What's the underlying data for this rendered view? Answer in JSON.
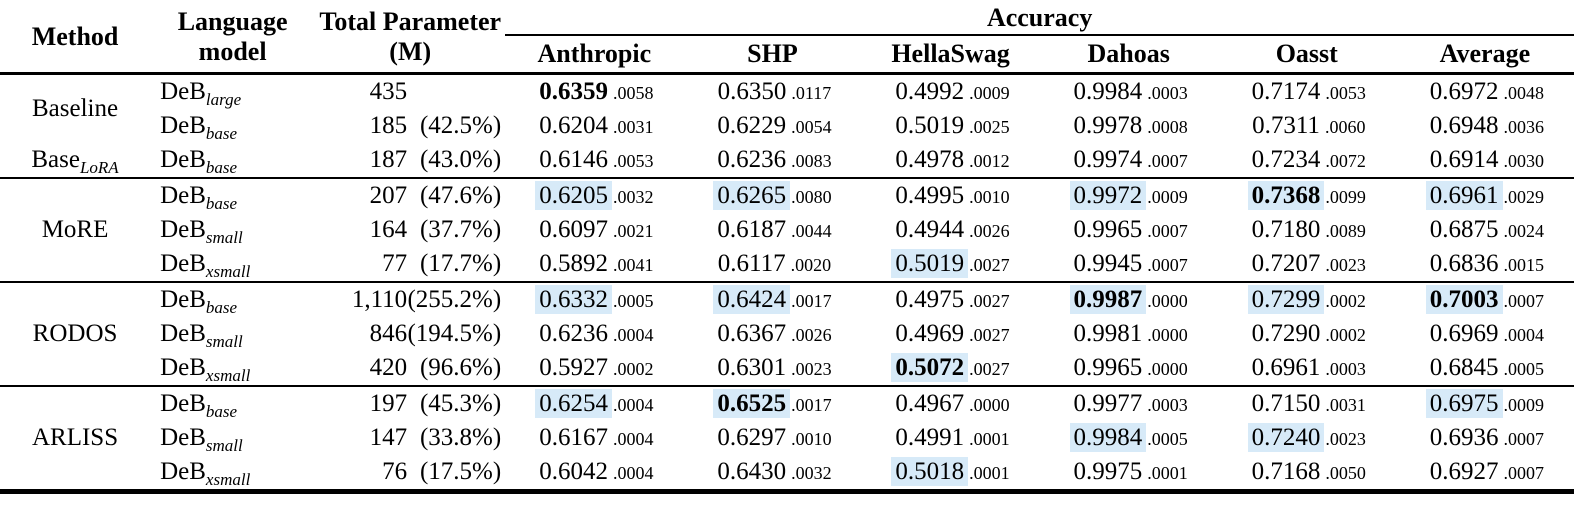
{
  "header": {
    "method": "Method",
    "language_model": "Language model",
    "total_parameter": "Total Parameter (M)",
    "accuracy": "Accuracy",
    "columns": [
      "Anthropic",
      "SHP",
      "HellaSwag",
      "Dahoas",
      "Oasst",
      "Average"
    ]
  },
  "highlight_color": "#d7eaf8",
  "blocks": [
    {
      "methods": [
        {
          "text": "Baseline",
          "sub": ""
        },
        {
          "text": "Base",
          "sub": "LoRA"
        }
      ],
      "rows": [
        {
          "model": {
            "base": "DeB",
            "sub": "large"
          },
          "param_num": "435",
          "param_pct": "",
          "acc": [
            {
              "v": "0.6359",
              "sd": ".0058",
              "cls": "bold"
            },
            {
              "v": "0.6350",
              "sd": ".0117",
              "cls": ""
            },
            {
              "v": "0.4992",
              "sd": ".0009",
              "cls": ""
            },
            {
              "v": "0.9984",
              "sd": ".0003",
              "cls": ""
            },
            {
              "v": "0.7174",
              "sd": ".0053",
              "cls": ""
            },
            {
              "v": "0.6972",
              "sd": ".0048",
              "cls": ""
            }
          ]
        },
        {
          "model": {
            "base": "DeB",
            "sub": "base"
          },
          "param_num": "185",
          "param_pct": "(42.5%)",
          "acc": [
            {
              "v": "0.6204",
              "sd": ".0031",
              "cls": ""
            },
            {
              "v": "0.6229",
              "sd": ".0054",
              "cls": ""
            },
            {
              "v": "0.5019",
              "sd": ".0025",
              "cls": ""
            },
            {
              "v": "0.9978",
              "sd": ".0008",
              "cls": ""
            },
            {
              "v": "0.7311",
              "sd": ".0060",
              "cls": ""
            },
            {
              "v": "0.6948",
              "sd": ".0036",
              "cls": ""
            }
          ]
        },
        {
          "model": {
            "base": "DeB",
            "sub": "base"
          },
          "param_num": "187",
          "param_pct": "(43.0%)",
          "acc": [
            {
              "v": "0.6146",
              "sd": ".0053",
              "cls": ""
            },
            {
              "v": "0.6236",
              "sd": ".0083",
              "cls": ""
            },
            {
              "v": "0.4978",
              "sd": ".0012",
              "cls": ""
            },
            {
              "v": "0.9974",
              "sd": ".0007",
              "cls": ""
            },
            {
              "v": "0.7234",
              "sd": ".0072",
              "cls": ""
            },
            {
              "v": "0.6914",
              "sd": ".0030",
              "cls": ""
            }
          ]
        }
      ]
    },
    {
      "methods": [
        {
          "text": "MoRE",
          "sub": ""
        }
      ],
      "rows": [
        {
          "model": {
            "base": "DeB",
            "sub": "base"
          },
          "param_num": "207",
          "param_pct": "(47.6%)",
          "acc": [
            {
              "v": "0.6205",
              "sd": ".0032",
              "cls": "hl"
            },
            {
              "v": "0.6265",
              "sd": ".0080",
              "cls": "hl"
            },
            {
              "v": "0.4995",
              "sd": ".0010",
              "cls": ""
            },
            {
              "v": "0.9972",
              "sd": ".0009",
              "cls": "hl"
            },
            {
              "v": "0.7368",
              "sd": ".0099",
              "cls": "bold hl"
            },
            {
              "v": "0.6961",
              "sd": ".0029",
              "cls": "hl"
            }
          ]
        },
        {
          "model": {
            "base": "DeB",
            "sub": "small"
          },
          "param_num": "164",
          "param_pct": "(37.7%)",
          "acc": [
            {
              "v": "0.6097",
              "sd": ".0021",
              "cls": ""
            },
            {
              "v": "0.6187",
              "sd": ".0044",
              "cls": ""
            },
            {
              "v": "0.4944",
              "sd": ".0026",
              "cls": ""
            },
            {
              "v": "0.9965",
              "sd": ".0007",
              "cls": ""
            },
            {
              "v": "0.7180",
              "sd": ".0089",
              "cls": ""
            },
            {
              "v": "0.6875",
              "sd": ".0024",
              "cls": ""
            }
          ]
        },
        {
          "model": {
            "base": "DeB",
            "sub": "xsmall"
          },
          "param_num": "77",
          "param_pct": "(17.7%)",
          "acc": [
            {
              "v": "0.5892",
              "sd": ".0041",
              "cls": ""
            },
            {
              "v": "0.6117",
              "sd": ".0020",
              "cls": ""
            },
            {
              "v": "0.5019",
              "sd": ".0027",
              "cls": "hl"
            },
            {
              "v": "0.9945",
              "sd": ".0007",
              "cls": ""
            },
            {
              "v": "0.7207",
              "sd": ".0023",
              "cls": ""
            },
            {
              "v": "0.6836",
              "sd": ".0015",
              "cls": ""
            }
          ]
        }
      ]
    },
    {
      "methods": [
        {
          "text": "RODOS",
          "sub": ""
        }
      ],
      "rows": [
        {
          "model": {
            "base": "DeB",
            "sub": "base"
          },
          "param_num": "1,110",
          "param_pct": "(255.2%)",
          "acc": [
            {
              "v": "0.6332",
              "sd": ".0005",
              "cls": "hl"
            },
            {
              "v": "0.6424",
              "sd": ".0017",
              "cls": "hl"
            },
            {
              "v": "0.4975",
              "sd": ".0027",
              "cls": ""
            },
            {
              "v": "0.9987",
              "sd": ".0000",
              "cls": "bold hl"
            },
            {
              "v": "0.7299",
              "sd": ".0002",
              "cls": "hl"
            },
            {
              "v": "0.7003",
              "sd": ".0007",
              "cls": "bold hl"
            }
          ]
        },
        {
          "model": {
            "base": "DeB",
            "sub": "small"
          },
          "param_num": "846",
          "param_pct": "(194.5%)",
          "acc": [
            {
              "v": "0.6236",
              "sd": ".0004",
              "cls": ""
            },
            {
              "v": "0.6367",
              "sd": ".0026",
              "cls": ""
            },
            {
              "v": "0.4969",
              "sd": ".0027",
              "cls": ""
            },
            {
              "v": "0.9981",
              "sd": ".0000",
              "cls": ""
            },
            {
              "v": "0.7290",
              "sd": ".0002",
              "cls": ""
            },
            {
              "v": "0.6969",
              "sd": ".0004",
              "cls": ""
            }
          ]
        },
        {
          "model": {
            "base": "DeB",
            "sub": "xsmall"
          },
          "param_num": "420",
          "param_pct": "(96.6%)",
          "acc": [
            {
              "v": "0.5927",
              "sd": ".0002",
              "cls": ""
            },
            {
              "v": "0.6301",
              "sd": ".0023",
              "cls": ""
            },
            {
              "v": "0.5072",
              "sd": ".0027",
              "cls": "bold hl"
            },
            {
              "v": "0.9965",
              "sd": ".0000",
              "cls": ""
            },
            {
              "v": "0.6961",
              "sd": ".0003",
              "cls": ""
            },
            {
              "v": "0.6845",
              "sd": ".0005",
              "cls": ""
            }
          ]
        }
      ]
    },
    {
      "methods": [
        {
          "text": "ARLISS",
          "sub": ""
        }
      ],
      "rows": [
        {
          "model": {
            "base": "DeB",
            "sub": "base"
          },
          "param_num": "197",
          "param_pct": "(45.3%)",
          "acc": [
            {
              "v": "0.6254",
              "sd": ".0004",
              "cls": "hl"
            },
            {
              "v": "0.6525",
              "sd": ".0017",
              "cls": "bold hl"
            },
            {
              "v": "0.4967",
              "sd": ".0000",
              "cls": ""
            },
            {
              "v": "0.9977",
              "sd": ".0003",
              "cls": ""
            },
            {
              "v": "0.7150",
              "sd": ".0031",
              "cls": ""
            },
            {
              "v": "0.6975",
              "sd": ".0009",
              "cls": "hl"
            }
          ]
        },
        {
          "model": {
            "base": "DeB",
            "sub": "small"
          },
          "param_num": "147",
          "param_pct": "(33.8%)",
          "acc": [
            {
              "v": "0.6167",
              "sd": ".0004",
              "cls": ""
            },
            {
              "v": "0.6297",
              "sd": ".0010",
              "cls": ""
            },
            {
              "v": "0.4991",
              "sd": ".0001",
              "cls": ""
            },
            {
              "v": "0.9984",
              "sd": ".0005",
              "cls": "hl"
            },
            {
              "v": "0.7240",
              "sd": ".0023",
              "cls": "hl"
            },
            {
              "v": "0.6936",
              "sd": ".0007",
              "cls": ""
            }
          ]
        },
        {
          "model": {
            "base": "DeB",
            "sub": "xsmall"
          },
          "param_num": "76",
          "param_pct": "(17.5%)",
          "acc": [
            {
              "v": "0.6042",
              "sd": ".0004",
              "cls": ""
            },
            {
              "v": "0.6430",
              "sd": ".0032",
              "cls": ""
            },
            {
              "v": "0.5018",
              "sd": ".0001",
              "cls": "hl"
            },
            {
              "v": "0.9975",
              "sd": ".0001",
              "cls": ""
            },
            {
              "v": "0.7168",
              "sd": ".0050",
              "cls": ""
            },
            {
              "v": "0.6927",
              "sd": ".0007",
              "cls": ""
            }
          ]
        }
      ]
    }
  ]
}
